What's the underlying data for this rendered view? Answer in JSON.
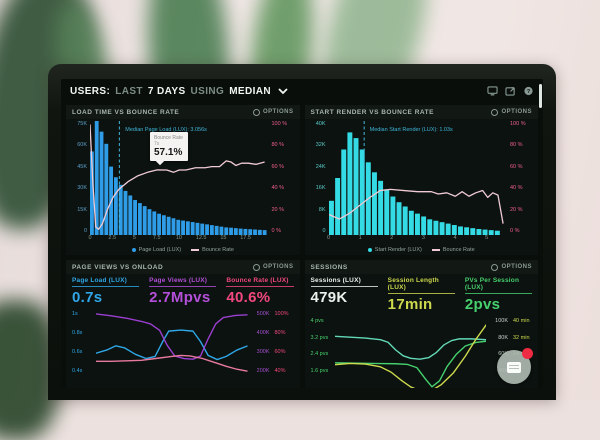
{
  "header": {
    "parts": [
      "USERS:",
      "LAST",
      "7 DAYS",
      "USING",
      "MEDIAN"
    ],
    "icons": [
      "monitor-icon",
      "export-icon",
      "help-icon"
    ]
  },
  "colors": {
    "accent_blue": "#2f9ce8",
    "accent_cyan": "#35dbe4",
    "accent_pink_line": "#f0cbd6",
    "accent_magenta": "#b44fd9",
    "accent_pink": "#f1487e",
    "accent_green": "#46d06e",
    "accent_teal": "#63d9b8",
    "accent_yellow": "#cdd94e",
    "badge_red": "#ee2b42"
  },
  "chart_data": [
    {
      "type": "bar",
      "title": "LOAD TIME VS BOUNCE RATE",
      "options_label": "OPTIONS",
      "xlabel": "Page Load (s)",
      "x_max": 18.5,
      "bar_width": 0.5,
      "bar_color": "#2f9ce8",
      "y_left": {
        "labels": [
          "75K",
          "60K",
          "45K",
          "30K",
          "15K",
          "0"
        ],
        "max": 75,
        "color": "#5d9fc9"
      },
      "y_right": {
        "labels": [
          "100 %",
          "80 %",
          "60 %",
          "40 %",
          "20 %",
          "0 %"
        ],
        "max": 100,
        "color": "#ef5f8d"
      },
      "x_ticks": [
        0,
        2.5,
        5,
        7.5,
        10,
        12.5,
        15,
        17.5
      ],
      "bars": [
        55,
        75,
        68,
        60,
        45,
        38,
        33,
        29,
        26,
        23,
        21,
        19,
        17,
        15.5,
        14,
        13,
        12,
        11,
        10,
        9.5,
        9,
        8.5,
        8,
        7.5,
        7,
        6.5,
        6,
        5.5,
        5,
        4.8,
        4.5,
        4.2,
        4,
        3.8,
        3.6,
        3.4,
        3.2
      ],
      "line": {
        "name": "Bounce Rate",
        "color": "#f0cbd6",
        "points": [
          [
            0,
            97
          ],
          [
            0.3,
            45
          ],
          [
            0.6,
            7
          ],
          [
            0.9,
            5
          ],
          [
            1.3,
            10
          ],
          [
            1.8,
            22
          ],
          [
            2.4,
            33
          ],
          [
            3,
            40
          ],
          [
            4,
            47
          ],
          [
            5,
            52
          ],
          [
            6,
            55
          ],
          [
            7,
            57.1
          ],
          [
            8,
            57
          ],
          [
            8.7,
            55
          ],
          [
            9.3,
            57
          ],
          [
            10,
            57
          ],
          [
            11,
            59
          ],
          [
            12,
            59
          ],
          [
            12.7,
            60
          ],
          [
            13.5,
            60
          ],
          [
            14.2,
            65
          ],
          [
            14.7,
            64
          ],
          [
            15.2,
            61
          ],
          [
            15.8,
            63
          ],
          [
            16.5,
            63
          ],
          [
            17.3,
            62
          ],
          [
            18.2,
            64
          ]
        ]
      },
      "median": {
        "label": "Median Page Load (LUX): 3.056s",
        "x": 3.06,
        "color": "#3fb6da"
      },
      "tooltip": {
        "title": "Bounce Rate",
        "sub": "7s",
        "value": "57.1%",
        "x": 7
      },
      "legend": [
        {
          "label": "Page Load (LUX)",
          "marker": "dot",
          "color": "#2f9ce8"
        },
        {
          "label": "Bounce Rate",
          "marker": "line",
          "color": "#f0cbd6"
        }
      ]
    },
    {
      "type": "bar",
      "title": "START RENDER VS BOUNCE RATE",
      "options_label": "OPTIONS",
      "xlabel": "Start Render (s)",
      "x_max": 5.2,
      "bar_width": 0.18,
      "bar_color": "#35dbe4",
      "y_left": {
        "labels": [
          "40K",
          "32K",
          "24K",
          "16K",
          "8K",
          "0"
        ],
        "max": 40,
        "color": "#58c9c9"
      },
      "y_right": {
        "labels": [
          "100 %",
          "80 %",
          "60 %",
          "40 %",
          "20 %",
          "0 %"
        ],
        "max": 100,
        "color": "#ef5f8d"
      },
      "x_ticks": [
        0,
        1,
        2,
        3,
        4,
        5
      ],
      "bars": [
        12,
        20,
        30,
        36,
        34,
        30,
        25.5,
        22,
        19,
        16,
        13.5,
        11.5,
        10,
        8.5,
        7.5,
        6.5,
        5.5,
        5,
        4.5,
        4,
        3.5,
        3,
        2.7,
        2.4,
        2.1,
        1.9,
        1.7,
        1.5
      ],
      "line": {
        "name": "Bounce Rate",
        "color": "#f0cbd6",
        "points": [
          [
            0,
            18
          ],
          [
            0.3,
            14
          ],
          [
            0.6,
            19
          ],
          [
            0.9,
            26
          ],
          [
            1.2,
            33
          ],
          [
            1.5,
            39
          ],
          [
            1.8,
            40
          ],
          [
            2.2,
            39
          ],
          [
            2.6,
            38
          ],
          [
            3,
            38
          ],
          [
            3.2,
            36
          ],
          [
            3.45,
            37
          ],
          [
            3.7,
            34
          ],
          [
            3.9,
            38
          ],
          [
            4.1,
            34
          ],
          [
            4.3,
            37
          ],
          [
            4.5,
            39
          ],
          [
            4.65,
            33
          ],
          [
            4.8,
            37
          ],
          [
            4.95,
            35
          ],
          [
            5.1,
            10
          ]
        ]
      },
      "median": {
        "label": "Median Start Render (LUX): 1.03s",
        "x": 1.03,
        "color": "#3fb6da"
      },
      "legend": [
        {
          "label": "Start Render (LUX)",
          "marker": "dot",
          "color": "#35dbe4"
        },
        {
          "label": "Bounce Rate",
          "marker": "line",
          "color": "#f0cbd6"
        }
      ]
    },
    {
      "type": "line",
      "title": "PAGE VIEWS VS ONLOAD",
      "options_label": "OPTIONS",
      "metrics": [
        {
          "label": "Page Load (LUX)",
          "value": "0.7s",
          "color": "#2fa7e8"
        },
        {
          "label": "Page Views (LUX)",
          "value": "2.7Mpvs",
          "color": "#b44fd9"
        },
        {
          "label": "Bounce Rate (LUX)",
          "value": "40.6%",
          "color": "#f1487e"
        }
      ],
      "y_left": {
        "labels": [
          "1s",
          "0.8s",
          "0.6s",
          "0.4s"
        ],
        "color": "#2fa7e8"
      },
      "y_right": {
        "rows": [
          [
            "500K",
            "100%"
          ],
          [
            "400K",
            "80%"
          ],
          [
            "300K",
            "60%"
          ],
          [
            "200K",
            "40%"
          ]
        ],
        "colors": [
          "#a44fd0",
          "#f1487e"
        ]
      },
      "series": [
        {
          "name": "Page Load",
          "color": "#2fa7e8",
          "unit": "s",
          "range": [
            0.3,
            1.05
          ],
          "points": [
            [
              0,
              0.63
            ],
            [
              0.7,
              0.66
            ],
            [
              1.3,
              0.7
            ],
            [
              1.9,
              0.68
            ],
            [
              2.6,
              0.62
            ],
            [
              3.3,
              0.58
            ],
            [
              3.9,
              0.6
            ],
            [
              4.4,
              0.74
            ],
            [
              4.8,
              0.84
            ],
            [
              5.6,
              0.85
            ],
            [
              6.4,
              0.84
            ],
            [
              6.9,
              0.74
            ],
            [
              7.4,
              0.61
            ],
            [
              8,
              0.57
            ],
            [
              8.6,
              0.6
            ],
            [
              9.3,
              0.66
            ],
            [
              10,
              0.7
            ]
          ]
        },
        {
          "name": "Page Views",
          "color": "#9b3fd1",
          "unit": "K",
          "range": [
            150,
            520
          ],
          "points": [
            [
              0,
              497
            ],
            [
              1,
              488
            ],
            [
              2,
              477
            ],
            [
              3,
              462
            ],
            [
              3.6,
              450
            ],
            [
              4.2,
              420
            ],
            [
              4.7,
              350
            ],
            [
              5.2,
              300
            ],
            [
              5.8,
              288
            ],
            [
              6.4,
              285
            ],
            [
              6.9,
              300
            ],
            [
              7.4,
              380
            ],
            [
              7.9,
              450
            ],
            [
              8.4,
              480
            ],
            [
              9.2,
              490
            ],
            [
              10,
              493
            ]
          ]
        },
        {
          "name": "Bounce Rate",
          "color": "#e8799f",
          "unit": "%",
          "range": [
            25,
            105
          ],
          "points": [
            [
              0,
              52
            ],
            [
              1,
              52
            ],
            [
              2,
              52.5
            ],
            [
              3,
              53
            ],
            [
              4,
              55
            ],
            [
              5,
              57
            ],
            [
              5.6,
              58
            ],
            [
              6.2,
              57.5
            ],
            [
              7,
              55
            ],
            [
              7.8,
              51
            ],
            [
              8.6,
              47
            ],
            [
              9.3,
              44
            ],
            [
              10,
              42
            ]
          ]
        }
      ]
    },
    {
      "type": "line",
      "title": "SESSIONS",
      "options_label": "OPTIONS",
      "metrics": [
        {
          "label": "Sessions (LUX)",
          "value": "479K",
          "color": "#e9f2ec"
        },
        {
          "label": "Session Length (LUX)",
          "value": "17min",
          "color": "#cdd94e"
        },
        {
          "label": "PVs Per Session (LUX)",
          "value": "2pvs",
          "color": "#46d06e"
        }
      ],
      "y_left": {
        "labels": [
          "4 pvs",
          "3.2 pvs",
          "2.4 pvs",
          "1.6 pvs"
        ],
        "color": "#46d06e"
      },
      "y_right": {
        "rows": [
          [
            "100K",
            "40 min"
          ],
          [
            "80K",
            "32 min"
          ],
          [
            "60K",
            "24 min"
          ],
          [
            "40K",
            ""
          ]
        ],
        "colors": [
          "#c5d1c9",
          "#cdd94e"
        ]
      },
      "series": [
        {
          "name": "Sessions",
          "color": "#63d9b8",
          "unit": "K",
          "range": [
            20,
            105
          ],
          "points": [
            [
              0,
              81
            ],
            [
              1,
              80
            ],
            [
              2,
              79
            ],
            [
              3,
              77
            ],
            [
              3.5,
              74
            ],
            [
              4,
              65
            ],
            [
              4.5,
              58
            ],
            [
              5,
              55
            ],
            [
              5.6,
              54
            ],
            [
              6.2,
              56
            ],
            [
              6.7,
              62
            ],
            [
              7.2,
              71
            ],
            [
              7.7,
              76
            ],
            [
              8.2,
              78
            ],
            [
              9,
              78
            ],
            [
              10,
              77
            ]
          ]
        },
        {
          "name": "PVs Per Session",
          "color": "#46d06e",
          "unit": "pvs",
          "range": [
            1.2,
            4.2
          ],
          "points": [
            [
              0,
              2.25
            ],
            [
              1,
              2.24
            ],
            [
              2,
              2.23
            ],
            [
              3,
              2.22
            ],
            [
              4,
              2.21
            ],
            [
              4.8,
              2.18
            ],
            [
              5.4,
              2.05
            ],
            [
              6,
              1.55
            ],
            [
              6.4,
              1.25
            ],
            [
              6.9,
              1.5
            ],
            [
              7.4,
              2.1
            ],
            [
              8,
              2.6
            ],
            [
              8.6,
              2.95
            ],
            [
              9.3,
              3.1
            ],
            [
              10,
              3.15
            ]
          ]
        },
        {
          "name": "Session Length",
          "color": "#cdd94e",
          "unit": "min",
          "range": [
            8,
            42
          ],
          "points": [
            [
              0,
              19
            ],
            [
              1,
              19.6
            ],
            [
              2,
              19.3
            ],
            [
              3,
              18
            ],
            [
              3.7,
              15.5
            ],
            [
              4.4,
              11.5
            ],
            [
              5,
              8.5
            ],
            [
              5.7,
              6.5
            ],
            [
              6.3,
              6.5
            ],
            [
              7,
              9.5
            ],
            [
              7.8,
              15
            ],
            [
              8.6,
              23
            ],
            [
              9.3,
              31
            ],
            [
              10,
              38
            ]
          ]
        }
      ]
    }
  ]
}
